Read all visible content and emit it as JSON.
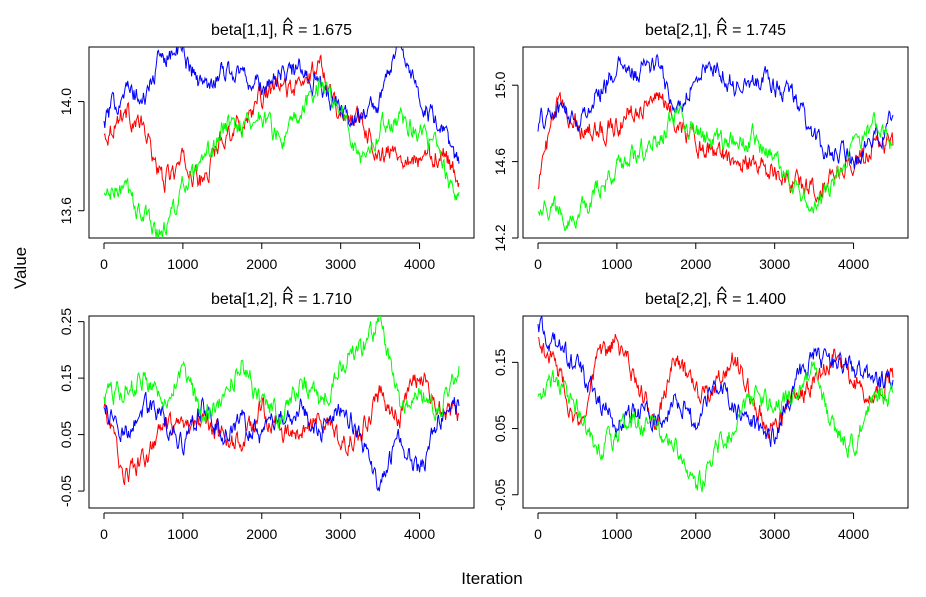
{
  "xlabel": "Iteration",
  "ylabel": "Value",
  "colors": {
    "chain1": "#ff0000",
    "chain2": "#0000ff",
    "chain3": "#00ff00"
  },
  "chart_data": [
    {
      "type": "line",
      "title_param": "beta[1,1],",
      "rhat_label": "R",
      "rhat_value": "= 1.675",
      "xlim": [
        0,
        4500
      ],
      "ylim": [
        13.5,
        14.2
      ],
      "xticks": [
        "0",
        "1000",
        "2000",
        "3000",
        "4000"
      ],
      "yticks": [
        "13.6",
        "14.0"
      ],
      "ytick_values": [
        13.6,
        14.0
      ],
      "x": [
        0,
        250,
        500,
        750,
        1000,
        1250,
        1500,
        1750,
        2000,
        2250,
        2500,
        2750,
        3000,
        3250,
        3500,
        3750,
        4000,
        4250,
        4500
      ],
      "series": [
        {
          "color": "#ff0000",
          "values": [
            13.87,
            13.97,
            13.9,
            13.7,
            13.78,
            13.7,
            13.88,
            13.92,
            14.02,
            14.05,
            14.05,
            14.15,
            13.95,
            13.95,
            13.8,
            13.82,
            13.78,
            13.82,
            13.73
          ]
        },
        {
          "color": "#0000ff",
          "values": [
            13.92,
            14.05,
            14.0,
            14.18,
            14.18,
            14.05,
            14.12,
            14.1,
            14.05,
            14.1,
            14.12,
            14.05,
            13.96,
            13.95,
            14.0,
            14.25,
            14.0,
            13.9,
            13.78
          ]
        },
        {
          "color": "#00ff00",
          "values": [
            13.65,
            13.68,
            13.58,
            13.52,
            13.68,
            13.75,
            13.9,
            13.92,
            13.95,
            13.85,
            13.95,
            14.08,
            13.98,
            13.8,
            13.9,
            13.95,
            13.9,
            13.8,
            13.63
          ]
        }
      ]
    },
    {
      "type": "line",
      "title_param": "beta[2,1],",
      "rhat_label": "R",
      "rhat_value": "= 1.745",
      "xlim": [
        0,
        4500
      ],
      "ylim": [
        14.2,
        15.2
      ],
      "xticks": [
        "0",
        "1000",
        "2000",
        "3000",
        "4000"
      ],
      "yticks": [
        "14.2",
        "14.6",
        "15.0"
      ],
      "ytick_values": [
        14.2,
        14.6,
        15.0
      ],
      "x": [
        0,
        250,
        500,
        750,
        1000,
        1250,
        1500,
        1750,
        2000,
        2250,
        2500,
        2750,
        3000,
        3250,
        3500,
        3750,
        4000,
        4250,
        4500
      ],
      "series": [
        {
          "color": "#ff0000",
          "values": [
            14.5,
            14.9,
            14.8,
            14.75,
            14.8,
            14.88,
            14.95,
            14.82,
            14.7,
            14.65,
            14.62,
            14.6,
            14.55,
            14.48,
            14.45,
            14.55,
            14.6,
            14.7,
            14.68
          ]
        },
        {
          "color": "#0000ff",
          "values": [
            14.8,
            14.88,
            14.8,
            14.95,
            15.1,
            15.05,
            15.12,
            14.85,
            15.05,
            15.1,
            15.0,
            15.05,
            15.0,
            14.95,
            14.7,
            14.65,
            14.6,
            14.72,
            14.8
          ]
        },
        {
          "color": "#00ff00",
          "values": [
            14.38,
            14.35,
            14.3,
            14.45,
            14.55,
            14.65,
            14.7,
            14.85,
            14.75,
            14.7,
            14.7,
            14.72,
            14.6,
            14.45,
            14.38,
            14.45,
            14.7,
            14.8,
            14.7
          ]
        }
      ]
    },
    {
      "type": "line",
      "title_param": "beta[1,2],",
      "rhat_label": "R",
      "rhat_value": "= 1.710",
      "xlim": [
        0,
        4500
      ],
      "ylim": [
        -0.08,
        0.26
      ],
      "xticks": [
        "0",
        "1000",
        "2000",
        "3000",
        "4000"
      ],
      "yticks": [
        "-0.05",
        "0.05",
        "0.15",
        "0.25"
      ],
      "ytick_values": [
        -0.05,
        0.05,
        0.15,
        0.25
      ],
      "x": [
        0,
        250,
        500,
        750,
        1000,
        1250,
        1500,
        1750,
        2000,
        2250,
        2500,
        2750,
        3000,
        3250,
        3500,
        3750,
        4000,
        4250,
        4500
      ],
      "series": [
        {
          "color": "#ff0000",
          "values": [
            0.1,
            -0.02,
            0.0,
            0.06,
            0.05,
            0.08,
            0.05,
            0.03,
            0.1,
            0.05,
            0.05,
            0.08,
            0.03,
            0.05,
            0.12,
            0.08,
            0.16,
            0.1,
            0.08
          ]
        },
        {
          "color": "#0000ff",
          "values": [
            0.1,
            0.05,
            0.1,
            0.08,
            0.03,
            0.1,
            0.05,
            0.07,
            0.05,
            0.08,
            0.1,
            0.05,
            0.1,
            0.05,
            -0.05,
            0.05,
            -0.02,
            0.08,
            0.1
          ]
        },
        {
          "color": "#00ff00",
          "values": [
            0.12,
            0.13,
            0.15,
            0.12,
            0.16,
            0.08,
            0.12,
            0.18,
            0.1,
            0.08,
            0.15,
            0.1,
            0.18,
            0.2,
            0.25,
            0.1,
            0.12,
            0.1,
            0.16
          ]
        }
      ]
    },
    {
      "type": "line",
      "title_param": "beta[2,2],",
      "rhat_label": "R",
      "rhat_value": "= 1.400",
      "xlim": [
        0,
        4500
      ],
      "ylim": [
        -0.07,
        0.22
      ],
      "xticks": [
        "0",
        "1000",
        "2000",
        "3000",
        "4000"
      ],
      "yticks": [
        "-0.05",
        "0.05",
        "0.15"
      ],
      "ytick_values": [
        -0.05,
        0.05,
        0.15
      ],
      "x": [
        0,
        250,
        500,
        750,
        1000,
        1250,
        1500,
        1750,
        2000,
        2250,
        2500,
        2750,
        3000,
        3250,
        3500,
        3750,
        4000,
        4250,
        4500
      ],
      "series": [
        {
          "color": "#ff0000",
          "values": [
            0.18,
            0.14,
            0.05,
            0.15,
            0.18,
            0.12,
            0.06,
            0.16,
            0.1,
            0.12,
            0.16,
            0.08,
            0.05,
            0.1,
            0.12,
            0.16,
            0.12,
            0.1,
            0.13
          ]
        },
        {
          "color": "#0000ff",
          "values": [
            0.2,
            0.17,
            0.14,
            0.1,
            0.05,
            0.08,
            0.06,
            0.1,
            0.06,
            0.12,
            0.08,
            0.05,
            0.04,
            0.12,
            0.16,
            0.15,
            0.14,
            0.12,
            0.12
          ]
        },
        {
          "color": "#00ff00",
          "values": [
            0.09,
            0.12,
            0.08,
            0.02,
            0.04,
            0.06,
            0.05,
            0.02,
            -0.05,
            0.02,
            0.05,
            0.1,
            0.08,
            0.1,
            0.14,
            0.04,
            0.02,
            0.1,
            0.1
          ]
        }
      ]
    }
  ]
}
